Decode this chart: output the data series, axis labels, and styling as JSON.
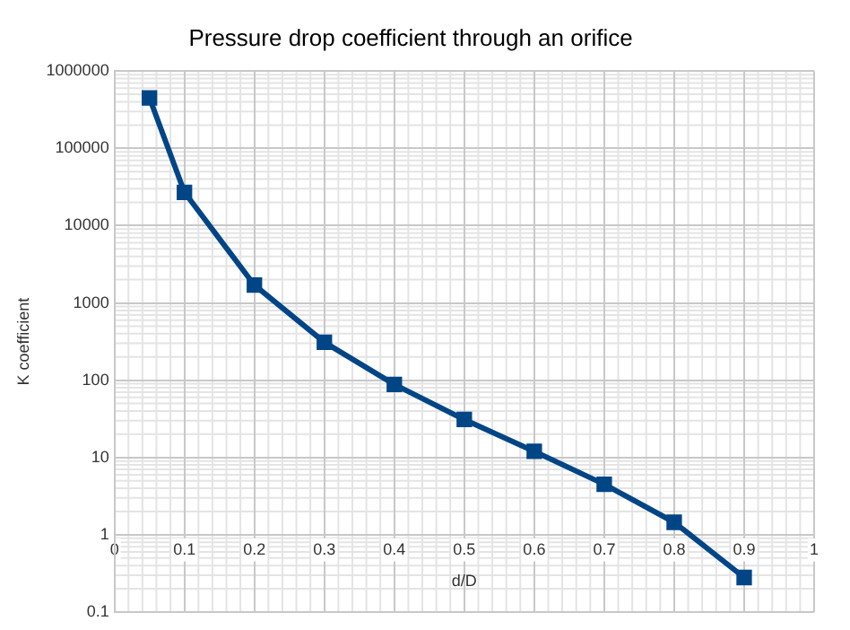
{
  "chart_data": {
    "type": "line",
    "title": "Pressure drop coefficient through an orifice",
    "xlabel": "d/D",
    "ylabel": "K coefficient",
    "x": [
      0.05,
      0.1,
      0.2,
      0.3,
      0.4,
      0.5,
      0.6,
      0.7,
      0.8,
      0.9
    ],
    "series": [
      {
        "color": "#004586",
        "values": [
          450000,
          27000,
          1700,
          310,
          88,
          31,
          12,
          4.5,
          1.45,
          0.28
        ]
      }
    ],
    "xlim": [
      0,
      1
    ],
    "xticks": [
      0,
      0.1,
      0.2,
      0.3,
      0.4,
      0.5,
      0.6,
      0.7,
      0.8,
      0.9,
      1
    ],
    "ylim": [
      0.1,
      1000000
    ],
    "yticks": [
      0.1,
      1,
      10,
      100,
      1000,
      10000,
      100000,
      1000000
    ],
    "log": "y",
    "grid": true,
    "legend": false,
    "marker": "square",
    "line_style": "solid"
  }
}
